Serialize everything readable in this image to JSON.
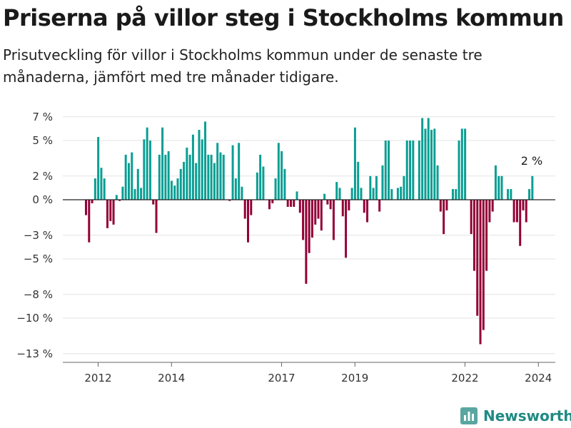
{
  "header": {
    "title": "Priserna på villor steg i Stockholms kommun",
    "subtitle": "Prisutveckling för villor i Stockholms kommun under de senaste tre månaderna, jämfört med tre månader tidigare."
  },
  "brand": {
    "name": "Newsworthy",
    "icon": "bar-chart-logo-icon",
    "color": "#1f8a83"
  },
  "colors": {
    "positive": "#0a9e93",
    "negative": "#930036",
    "grid": "#e3e3e3",
    "zero_line": "#222222",
    "axis_text": "#333333"
  },
  "chart_data": {
    "type": "bar",
    "unit": "%",
    "ylim": [
      -14,
      7.5
    ],
    "yticks": [
      7,
      5,
      2,
      0,
      -3,
      -5,
      -8,
      -10,
      -13
    ],
    "ytick_labels": [
      "7 %",
      "5 %",
      "2 %",
      "0 %",
      "−3 %",
      "−5 %",
      "−8 %",
      "−10 %",
      "−13 %"
    ],
    "x_start_year": 2011.67,
    "x_step_years": 0.08333,
    "xticks": [
      2012,
      2014,
      2017,
      2019,
      2022,
      2024
    ],
    "xtick_labels": [
      "2012",
      "2014",
      "2017",
      "2019",
      "2022",
      "2024"
    ],
    "grid": true,
    "last_value_label": "2 %",
    "values": [
      -1.3,
      -3.6,
      -0.3,
      1.8,
      5.3,
      2.7,
      1.8,
      -2.4,
      -1.8,
      -2.1,
      0.4,
      -0.1,
      1.1,
      3.8,
      3.1,
      4.0,
      0.9,
      2.6,
      1.0,
      5.1,
      6.1,
      5.0,
      -0.4,
      -2.8,
      3.8,
      6.1,
      3.8,
      4.1,
      1.6,
      1.2,
      1.8,
      2.6,
      3.2,
      4.4,
      3.8,
      5.5,
      3.1,
      5.9,
      5.1,
      6.6,
      3.8,
      3.8,
      3.1,
      4.8,
      4.0,
      3.8,
      0.0,
      -0.1,
      4.6,
      1.8,
      4.8,
      1.1,
      -1.6,
      -3.6,
      -1.3,
      0.0,
      2.3,
      3.8,
      2.8,
      0.0,
      -0.8,
      -0.3,
      1.8,
      4.8,
      4.1,
      2.6,
      -0.6,
      -0.6,
      -0.6,
      0.7,
      -1.1,
      -3.4,
      -7.1,
      -4.5,
      -3.2,
      -2.1,
      -1.6,
      -2.6,
      0.5,
      -0.4,
      -0.8,
      -3.4,
      1.5,
      1.0,
      -1.4,
      -4.9,
      -0.9,
      1.0,
      6.1,
      3.2,
      1.0,
      -1.1,
      -1.9,
      2.0,
      1.0,
      2.0,
      -1.0,
      2.9,
      5.0,
      5.0,
      0.9,
      0.0,
      1.0,
      1.1,
      2.0,
      5.0,
      5.0,
      5.0,
      0.0,
      5.0,
      6.9,
      6.0,
      6.9,
      5.9,
      6.0,
      2.9,
      -1.0,
      -2.9,
      -0.9,
      0.0,
      0.9,
      0.9,
      5.0,
      6.0,
      6.0,
      0.0,
      -2.9,
      -6.0,
      -9.8,
      -12.2,
      -11.0,
      -6.0,
      -1.9,
      -1.0,
      2.9,
      2.0,
      2.0,
      0.0,
      0.9,
      0.9,
      -1.9,
      -1.9,
      -3.9,
      -0.9,
      -1.9,
      0.9,
      2.0
    ]
  }
}
